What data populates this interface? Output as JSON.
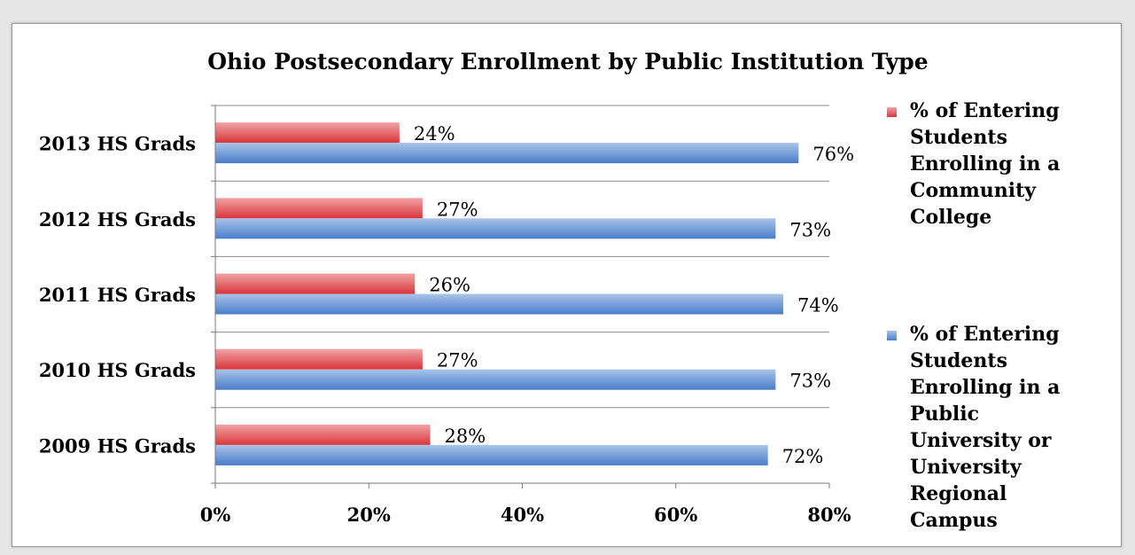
{
  "chart_data": {
    "type": "bar",
    "orientation": "horizontal",
    "title": "Ohio Postsecondary Enrollment by Public Institution Type",
    "categories": [
      "2013 HS Grads",
      "2012 HS Grads",
      "2011 HS Grads",
      "2010 HS Grads",
      "2009 HS Grads"
    ],
    "series": [
      {
        "name": "% of Entering Students Enrolling in a Community College",
        "legend_lines": [
          "% of Entering",
          "Students",
          "Enrolling in a",
          "Community",
          "College"
        ],
        "values": [
          24,
          27,
          26,
          27,
          28
        ],
        "labels": [
          "24%",
          "27%",
          "26%",
          "27%",
          "28%"
        ],
        "color_light": "#f2a3a5",
        "color_dark": "#d8363b"
      },
      {
        "name": "% of Entering Students Enrolling in a Public University or University Regional Campus",
        "legend_lines": [
          "% of Entering",
          "Students",
          "Enrolling in a",
          "Public",
          "University or",
          "University",
          "Regional",
          "Campus"
        ],
        "values": [
          76,
          73,
          74,
          73,
          72
        ],
        "labels": [
          "76%",
          "73%",
          "74%",
          "73%",
          "72%"
        ],
        "color_light": "#a9c4ea",
        "color_dark": "#4a7cc9"
      }
    ],
    "x_ticks": [
      "0%",
      "20%",
      "40%",
      "60%",
      "80%"
    ],
    "xlim": [
      0,
      80
    ],
    "grid": true,
    "legend_position": "right"
  }
}
